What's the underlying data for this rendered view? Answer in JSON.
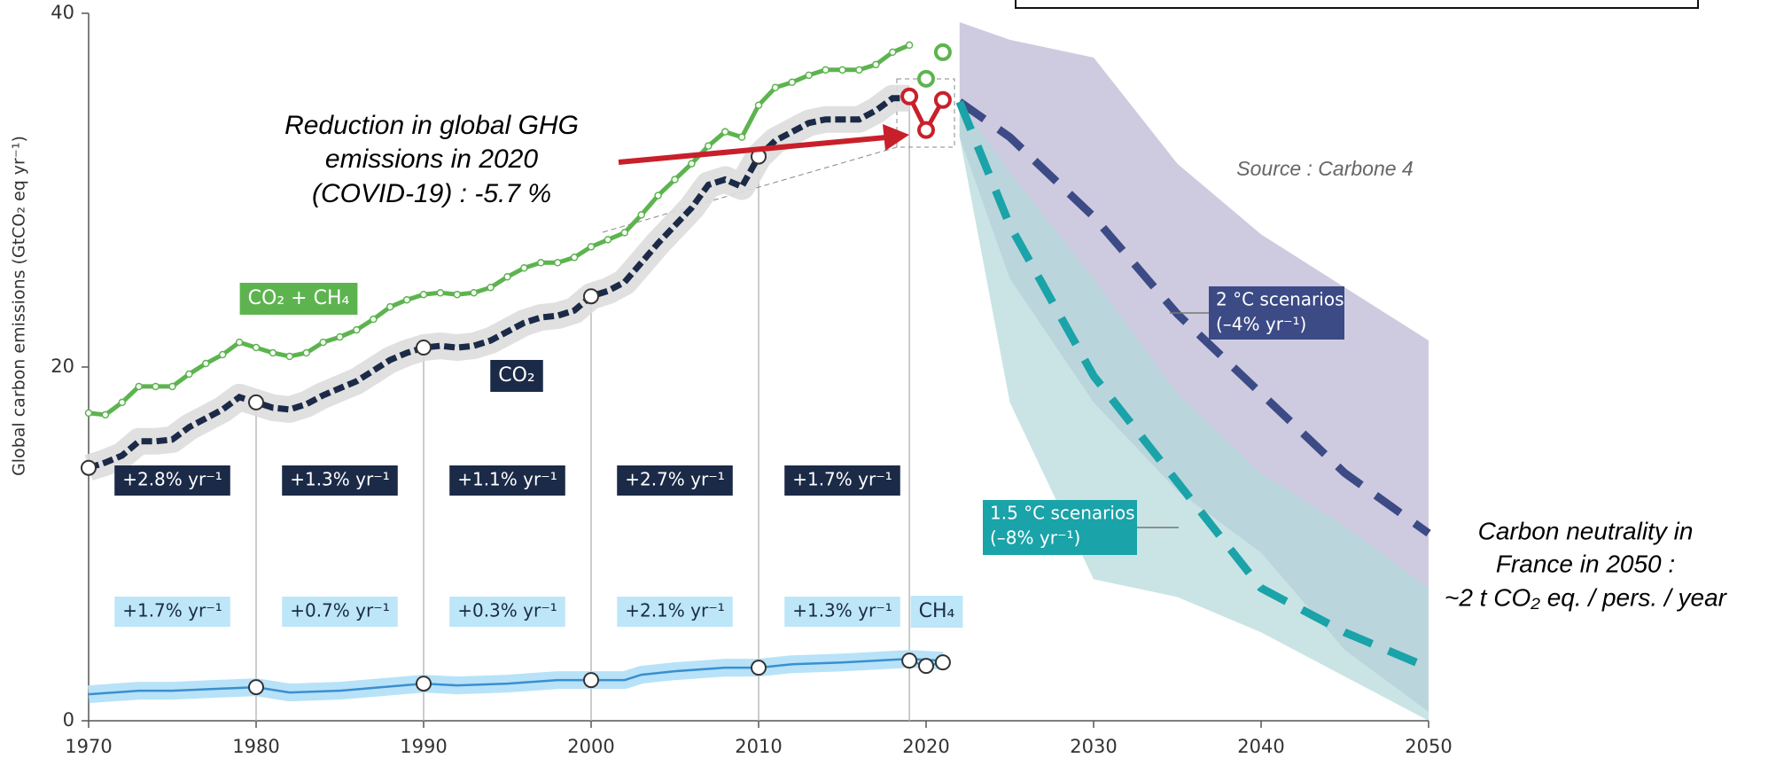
{
  "chart_data": {
    "type": "line",
    "y_axis_label": "Global carbon emissions (GtCO₂ eq yr⁻¹)",
    "xlim": [
      1970,
      2050
    ],
    "xticks": [
      1970,
      1980,
      1990,
      2000,
      2010,
      2020,
      2030,
      2040,
      2050
    ],
    "ylim": [
      0,
      40
    ],
    "yticks": [
      0,
      20,
      40
    ],
    "series": [
      {
        "name": "CO₂ + CH₄",
        "color": "#5db44f",
        "x": [
          1970,
          1971,
          1972,
          1973,
          1974,
          1975,
          1976,
          1977,
          1978,
          1979,
          1980,
          1981,
          1982,
          1983,
          1984,
          1985,
          1986,
          1987,
          1988,
          1989,
          1990,
          1991,
          1992,
          1993,
          1994,
          1995,
          1996,
          1997,
          1998,
          1999,
          2000,
          2001,
          2002,
          2003,
          2004,
          2005,
          2006,
          2007,
          2008,
          2009,
          2010,
          2011,
          2012,
          2013,
          2014,
          2015,
          2016,
          2017,
          2018,
          2019
        ],
        "values": [
          17.4,
          17.3,
          18.0,
          18.9,
          18.9,
          18.9,
          19.6,
          20.2,
          20.7,
          21.4,
          21.1,
          20.8,
          20.6,
          20.8,
          21.4,
          21.7,
          22.1,
          22.7,
          23.4,
          23.8,
          24.1,
          24.2,
          24.1,
          24.2,
          24.5,
          25.1,
          25.6,
          25.9,
          25.9,
          26.2,
          26.8,
          27.2,
          27.6,
          28.6,
          29.7,
          30.6,
          31.5,
          32.5,
          33.3,
          33.0,
          34.8,
          35.8,
          36.1,
          36.5,
          36.8,
          36.8,
          36.8,
          37.1,
          37.8,
          38.2
        ],
        "covid_x": [
          2020,
          2021
        ],
        "covid_values": [
          36.3,
          37.8
        ],
        "covid_color": "#5db44f"
      },
      {
        "name": "CO₂",
        "color": "#1b2a47",
        "x": [
          1970,
          1971,
          1972,
          1973,
          1974,
          1975,
          1976,
          1977,
          1978,
          1979,
          1980,
          1981,
          1982,
          1983,
          1984,
          1985,
          1986,
          1987,
          1988,
          1989,
          1990,
          1991,
          1992,
          1993,
          1994,
          1995,
          1996,
          1997,
          1998,
          1999,
          2000,
          2001,
          2002,
          2003,
          2004,
          2005,
          2006,
          2007,
          2008,
          2009,
          2010,
          2011,
          2012,
          2013,
          2014,
          2015,
          2016,
          2017,
          2018,
          2019
        ],
        "values": [
          14.3,
          14.6,
          15.0,
          15.8,
          15.8,
          15.9,
          16.6,
          17.1,
          17.6,
          18.3,
          18.0,
          17.7,
          17.6,
          17.9,
          18.4,
          18.8,
          19.2,
          19.8,
          20.4,
          20.8,
          21.1,
          21.2,
          21.1,
          21.2,
          21.5,
          22.0,
          22.5,
          22.8,
          22.9,
          23.2,
          24.0,
          24.3,
          24.8,
          25.9,
          27.0,
          28.0,
          29.0,
          30.3,
          30.6,
          30.2,
          31.9,
          32.8,
          33.3,
          33.8,
          34.0,
          34.0,
          34.0,
          34.5,
          35.2,
          35.2
        ],
        "covid_x": [
          2019,
          2020,
          2021
        ],
        "covid_values": [
          35.3,
          33.4,
          35.1
        ],
        "covid_color": "#c8202a"
      },
      {
        "name": "CH₄",
        "color": "#3a8fd0",
        "x": [
          1970,
          1973,
          1975,
          1980,
          1982,
          1985,
          1990,
          1992,
          1995,
          1998,
          2000,
          2002,
          2003,
          2005,
          2008,
          2010,
          2012,
          2015,
          2019,
          2021
        ],
        "values": [
          1.5,
          1.7,
          1.7,
          1.9,
          1.6,
          1.7,
          2.1,
          2.0,
          2.1,
          2.3,
          2.3,
          2.3,
          2.6,
          2.8,
          3.0,
          3.0,
          3.2,
          3.3,
          3.5,
          3.4
        ],
        "covid_x": [
          2019,
          2020,
          2021
        ],
        "covid_values": [
          3.4,
          3.1,
          3.3
        ],
        "covid_color": "#3a8fd0"
      }
    ],
    "co2_rates": [
      "+2.8% yr⁻¹",
      "+1.3% yr⁻¹",
      "+1.1% yr⁻¹",
      "+2.7% yr⁻¹",
      "+1.7% yr⁻¹"
    ],
    "ch4_rates": [
      "+1.7% yr⁻¹",
      "+0.7% yr⁻¹",
      "+0.3% yr⁻¹",
      "+2.1% yr⁻¹",
      "+1.3% yr⁻¹"
    ],
    "scenarios": [
      {
        "label": [
          "2 °C scenarios",
          "(–4% yr⁻¹)"
        ],
        "color": "#3c4a86",
        "band_color": "#b9b5d3",
        "x": [
          2022,
          2025,
          2030,
          2035,
          2040,
          2045,
          2050
        ],
        "values": [
          35.0,
          33.0,
          28.5,
          23.0,
          18.5,
          14.0,
          10.6
        ],
        "band_upper": [
          39.5,
          38.5,
          37.5,
          31.5,
          27.5,
          24.5,
          21.5
        ],
        "band_lower": [
          33.0,
          25.0,
          18.0,
          13.0,
          9.5,
          4.0,
          0.5
        ]
      },
      {
        "label": [
          "1.5 °C scenarios",
          "(–8% yr⁻¹)"
        ],
        "color": "#1aa3a8",
        "band_color": "#b4d9da",
        "x": [
          2022,
          2025,
          2030,
          2035,
          2040,
          2045,
          2050
        ],
        "values": [
          35.0,
          28.0,
          19.5,
          13.5,
          7.5,
          5.0,
          3.0
        ],
        "band_upper": [
          35.0,
          31.0,
          25.0,
          18.5,
          14.0,
          11.0,
          7.5
        ],
        "band_lower": [
          33.0,
          18.0,
          8.0,
          7.0,
          5.0,
          2.5,
          0.0
        ]
      }
    ],
    "annotation": [
      "Reduction in global GHG",
      "emissions in 2020",
      "(COVID-19) : -5.7 %"
    ],
    "source": "Source : Carbone 4",
    "note": [
      "Carbon neutrality in",
      "France in 2050 :",
      "~2 t CO₂ eq. / pers. / year"
    ]
  }
}
